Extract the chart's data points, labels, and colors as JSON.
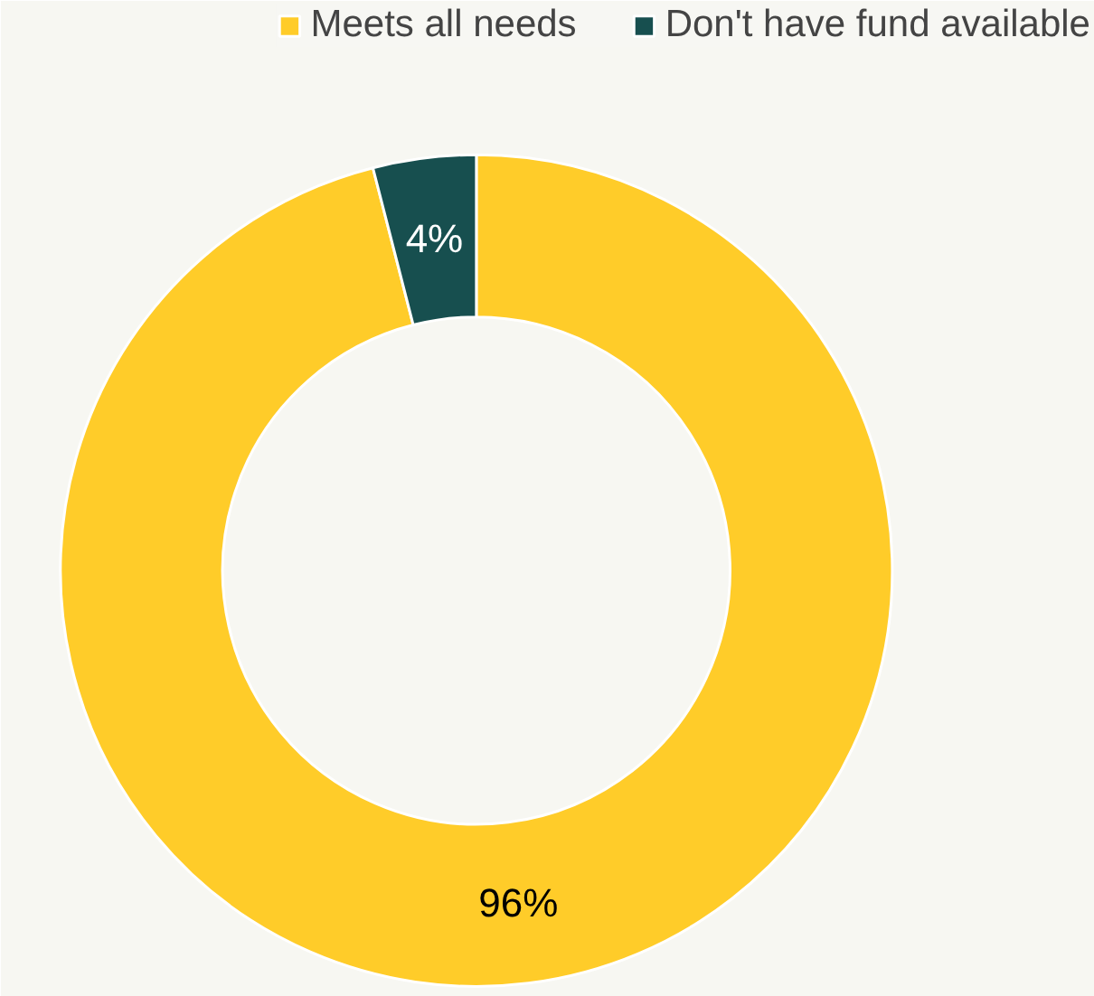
{
  "chart_data": {
    "type": "donut",
    "categories": [
      "Meets all needs",
      "Don't have fund available"
    ],
    "values": [
      96,
      4
    ],
    "colors": [
      "#ffcc29",
      "#174f4f"
    ],
    "value_labels": [
      "96%",
      "4%"
    ],
    "legend": "top"
  }
}
